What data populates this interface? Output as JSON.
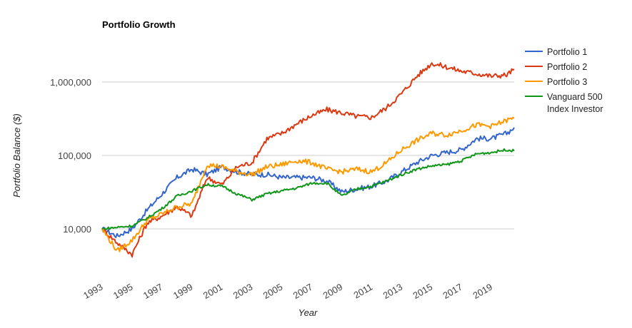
{
  "chart_data": {
    "type": "line",
    "title": "Portfolio Growth",
    "xlabel": "Year",
    "ylabel": "Portfolio Balance ($)",
    "yscale": "log",
    "ylim": [
      4000,
      2500000
    ],
    "xlim": [
      1993,
      2020.5
    ],
    "grid": true,
    "legend_position": "right",
    "y_ticks": [
      {
        "value": 10000,
        "label": "10,000"
      },
      {
        "value": 100000,
        "label": "100,000"
      },
      {
        "value": 1000000,
        "label": "1,000,000"
      }
    ],
    "x_ticks": [
      {
        "value": 1993,
        "label": "1993"
      },
      {
        "value": 1995,
        "label": "1995"
      },
      {
        "value": 1997,
        "label": "1997"
      },
      {
        "value": 1999,
        "label": "1999"
      },
      {
        "value": 2001,
        "label": "2001"
      },
      {
        "value": 2003,
        "label": "2003"
      },
      {
        "value": 2005,
        "label": "2005"
      },
      {
        "value": 2007,
        "label": "2007"
      },
      {
        "value": 2009,
        "label": "2009"
      },
      {
        "value": 2011,
        "label": "2011"
      },
      {
        "value": 2013,
        "label": "2013"
      },
      {
        "value": 2015,
        "label": "2015"
      },
      {
        "value": 2017,
        "label": "2017"
      },
      {
        "value": 2019,
        "label": "2019"
      }
    ],
    "x": [
      1993,
      1994,
      1995,
      1996,
      1997,
      1998,
      1999,
      2000,
      2001,
      2002,
      2003,
      2004,
      2005,
      2006,
      2007,
      2008,
      2009,
      2010,
      2011,
      2012,
      2013,
      2014,
      2015,
      2016,
      2017,
      2018,
      2019,
      2020,
      2020.5
    ],
    "series": [
      {
        "name": "Portfolio 1",
        "color": "#3366cc",
        "values": [
          10000,
          8000,
          10000,
          18000,
          30000,
          50000,
          65000,
          55000,
          70000,
          60000,
          55000,
          55000,
          50000,
          50000,
          50000,
          45000,
          32000,
          35000,
          38000,
          45000,
          60000,
          80000,
          100000,
          110000,
          120000,
          170000,
          170000,
          200000,
          240000
        ]
      },
      {
        "name": "Portfolio 2",
        "color": "#dc3912",
        "values": [
          10000,
          6500,
          4500,
          12000,
          15000,
          20000,
          15000,
          50000,
          40000,
          70000,
          80000,
          170000,
          200000,
          270000,
          350000,
          420000,
          380000,
          340000,
          330000,
          450000,
          700000,
          1200000,
          1800000,
          1600000,
          1400000,
          1300000,
          1200000,
          1250000,
          1500000
        ]
      },
      {
        "name": "Portfolio 3",
        "color": "#ff9900",
        "values": [
          10000,
          5000,
          7000,
          13000,
          16000,
          20000,
          22000,
          75000,
          70000,
          60000,
          55000,
          70000,
          75000,
          85000,
          80000,
          65000,
          60000,
          65000,
          60000,
          80000,
          120000,
          160000,
          200000,
          190000,
          220000,
          260000,
          250000,
          300000,
          320000
        ]
      },
      {
        "name": "Vanguard 500 Index Investor",
        "color": "#109618",
        "values": [
          10000,
          10500,
          11000,
          14000,
          19000,
          28000,
          33000,
          40000,
          38000,
          30000,
          25000,
          30000,
          33000,
          36000,
          42000,
          42000,
          28000,
          35000,
          38000,
          45000,
          55000,
          65000,
          72000,
          75000,
          85000,
          105000,
          110000,
          120000,
          115000
        ]
      }
    ]
  },
  "legend": {
    "items": [
      {
        "lines": [
          "Portfolio 1"
        ],
        "color": "#3366cc"
      },
      {
        "lines": [
          "Portfolio 2"
        ],
        "color": "#dc3912"
      },
      {
        "lines": [
          "Portfolio 3"
        ],
        "color": "#ff9900"
      },
      {
        "lines": [
          "Vanguard 500",
          "Index Investor"
        ],
        "color": "#109618"
      }
    ]
  }
}
